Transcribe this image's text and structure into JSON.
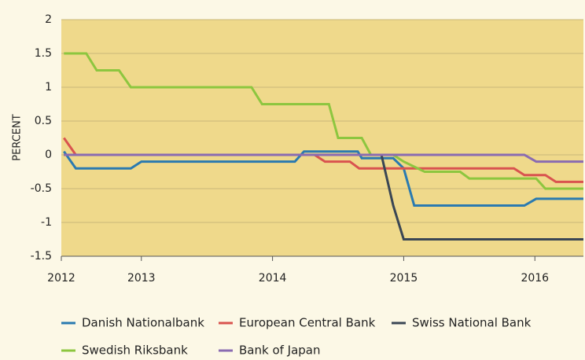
{
  "chart_data": {
    "type": "line",
    "y_label": "PERCENT",
    "xlim": [
      2012.39,
      2016.37
    ],
    "xticks": [
      {
        "value": 2012.39,
        "label": "2012"
      },
      2013,
      2014,
      2015,
      2016
    ],
    "ylim": [
      -1.5,
      2
    ],
    "yticks": [
      -1.5,
      -1,
      -0.5,
      0,
      0.5,
      1,
      1.5,
      2
    ],
    "grid": true,
    "legend": "bottom",
    "series": [
      {
        "name": "Danish Nationalbank",
        "color": "#2a7ab0",
        "x": [
          2012.41,
          2012.5,
          2012.92,
          2013.0,
          2014.17,
          2014.24,
          2014.65,
          2014.68,
          2014.92,
          2015.0,
          2015.08,
          2015.92,
          2016.01,
          2016.37
        ],
        "values": [
          0.05,
          -0.2,
          -0.2,
          -0.1,
          -0.1,
          0.05,
          0.05,
          -0.05,
          -0.05,
          -0.2,
          -0.75,
          -0.75,
          -0.65,
          -0.65
        ]
      },
      {
        "name": "European Central Bank",
        "color": "#d9534f",
        "x": [
          2012.41,
          2012.5,
          2014.32,
          2014.4,
          2014.59,
          2014.66,
          2015.84,
          2015.92,
          2016.08,
          2016.16,
          2016.37
        ],
        "values": [
          0.25,
          0,
          0,
          -0.1,
          -0.1,
          -0.2,
          -0.2,
          -0.3,
          -0.3,
          -0.4,
          -0.4
        ]
      },
      {
        "name": "Swiss National Bank",
        "color": "#3a4654",
        "x": [
          2012.41,
          2014.83,
          2014.92,
          2015.0,
          2016.37
        ],
        "values": [
          0,
          0,
          -0.75,
          -1.25,
          -1.25
        ]
      },
      {
        "name": "Swedish Riksbank",
        "color": "#8dc63f",
        "x": [
          2012.41,
          2012.58,
          2012.66,
          2012.83,
          2012.92,
          2013.84,
          2013.92,
          2014.43,
          2014.5,
          2014.68,
          2014.75,
          2014.92,
          2015.0,
          2015.16,
          2015.43,
          2015.5,
          2016.01,
          2016.08,
          2016.37
        ],
        "values": [
          1.5,
          1.5,
          1.25,
          1.25,
          1.0,
          1.0,
          0.75,
          0.75,
          0.25,
          0.25,
          0,
          0,
          -0.1,
          -0.25,
          -0.25,
          -0.35,
          -0.35,
          -0.5,
          -0.5
        ]
      },
      {
        "name": "Bank of Japan",
        "color": "#8a6bb1",
        "x": [
          2012.41,
          2015.92,
          2016.01,
          2016.37
        ],
        "values": [
          0,
          0,
          -0.1,
          -0.1
        ]
      }
    ]
  }
}
